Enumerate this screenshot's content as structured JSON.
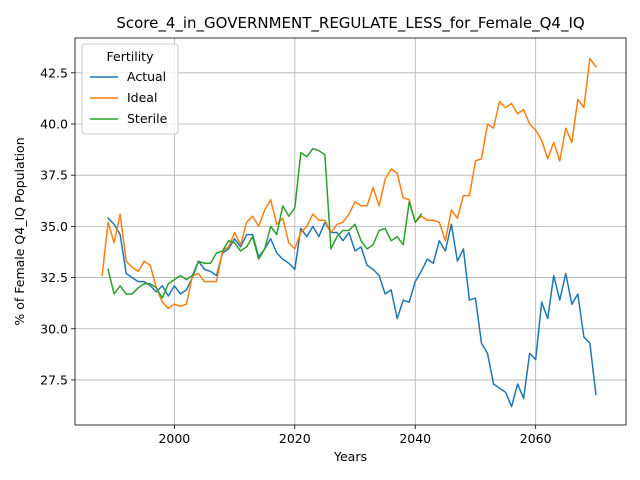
{
  "chart_data": {
    "type": "line",
    "title": "Score_4_in_GOVERNMENT_REGULATE_LESS_for_Female_Q4_IQ",
    "xlabel": "Years",
    "ylabel": "% of Female Q4_IQ Population",
    "xlim": [
      1983.5,
      2075
    ],
    "ylim": [
      25.3,
      44.2
    ],
    "x_ticks": [
      2000,
      2020,
      2040,
      2060
    ],
    "y_ticks": [
      27.5,
      30.0,
      32.5,
      35.0,
      37.5,
      40.0,
      42.5
    ],
    "y_tick_labels": [
      "27.5",
      "30.0",
      "32.5",
      "35.0",
      "37.5",
      "40.0",
      "42.5"
    ],
    "grid": true,
    "legend": {
      "title": "Fertility",
      "placement": "top-left"
    },
    "series": [
      {
        "name": "Actual",
        "color": "#1f77b4",
        "x": [
          1989,
          1990,
          1991,
          1992,
          1993,
          1994,
          1995,
          1996,
          1997,
          1998,
          1999,
          2000,
          2001,
          2002,
          2003,
          2004,
          2005,
          2006,
          2007,
          2008,
          2009,
          2010,
          2011,
          2012,
          2013,
          2014,
          2015,
          2016,
          2017,
          2018,
          2019,
          2020,
          2021,
          2022,
          2023,
          2024,
          2025,
          2026,
          2027,
          2028,
          2029,
          2030,
          2031,
          2032,
          2033,
          2034,
          2035,
          2036,
          2037,
          2038,
          2039,
          2040,
          2041,
          2042,
          2043,
          2044,
          2045,
          2046,
          2047,
          2048,
          2049,
          2050,
          2051,
          2052,
          2053,
          2054,
          2055,
          2056,
          2057,
          2058,
          2059,
          2060,
          2061,
          2062,
          2063,
          2064,
          2065,
          2066,
          2067,
          2068,
          2069,
          2070
        ],
        "values": [
          35.4,
          35.1,
          34.6,
          32.7,
          32.5,
          32.3,
          32.3,
          32.1,
          31.8,
          32.1,
          31.6,
          32.1,
          31.7,
          31.9,
          32.5,
          33.3,
          32.9,
          32.8,
          32.6,
          33.7,
          33.9,
          34.4,
          34.0,
          34.6,
          34.6,
          33.5,
          33.9,
          34.4,
          33.7,
          33.4,
          33.2,
          32.9,
          34.9,
          34.5,
          35.0,
          34.5,
          35.2,
          34.7,
          34.7,
          34.3,
          34.7,
          33.8,
          34.0,
          33.1,
          32.9,
          32.6,
          31.7,
          31.9,
          30.5,
          31.4,
          31.3,
          32.3,
          32.8,
          33.4,
          33.2,
          34.3,
          33.8,
          35.1,
          33.3,
          33.9,
          31.4,
          31.5,
          29.3,
          28.8,
          27.3,
          27.1,
          26.9,
          26.2,
          27.3,
          26.6,
          28.8,
          28.5,
          31.3,
          30.5,
          32.6,
          31.4,
          32.7,
          31.2,
          31.7,
          29.6,
          29.3,
          26.8
        ]
      },
      {
        "name": "Ideal",
        "color": "#ff7f0e",
        "x": [
          1988,
          1989,
          1990,
          1991,
          1992,
          1993,
          1994,
          1995,
          1996,
          1997,
          1998,
          1999,
          2000,
          2001,
          2002,
          2003,
          2004,
          2005,
          2006,
          2007,
          2008,
          2009,
          2010,
          2011,
          2012,
          2013,
          2014,
          2015,
          2016,
          2017,
          2018,
          2019,
          2020,
          2021,
          2022,
          2023,
          2024,
          2025,
          2026,
          2027,
          2028,
          2029,
          2030,
          2031,
          2032,
          2033,
          2034,
          2035,
          2036,
          2037,
          2038,
          2039,
          2040,
          2041,
          2042,
          2043,
          2044,
          2045,
          2046,
          2047,
          2048,
          2049,
          2050,
          2051,
          2052,
          2053,
          2054,
          2055,
          2056,
          2057,
          2058,
          2059,
          2060,
          2061,
          2062,
          2063,
          2064,
          2065,
          2066,
          2067,
          2068,
          2069,
          2070
        ],
        "values": [
          32.6,
          35.2,
          34.2,
          35.6,
          33.3,
          33.0,
          32.8,
          33.3,
          33.1,
          32.0,
          31.3,
          31.0,
          31.2,
          31.1,
          31.2,
          32.6,
          32.7,
          32.3,
          32.3,
          32.3,
          33.8,
          34.0,
          34.7,
          34.1,
          35.2,
          35.5,
          35.0,
          35.8,
          36.3,
          35.1,
          35.4,
          34.2,
          33.9,
          34.7,
          35.0,
          35.6,
          35.3,
          35.3,
          34.7,
          35.1,
          35.2,
          35.6,
          36.2,
          36.0,
          36.0,
          36.9,
          36.0,
          37.3,
          37.8,
          37.6,
          36.4,
          36.3,
          35.2,
          35.5,
          35.3,
          35.3,
          35.2,
          34.3,
          35.8,
          35.4,
          36.5,
          36.5,
          38.2,
          38.3,
          40.0,
          39.8,
          41.1,
          40.8,
          41.0,
          40.5,
          40.7,
          40.0,
          39.7,
          39.2,
          38.3,
          39.1,
          38.2,
          39.8,
          39.1,
          41.2,
          40.8,
          43.2,
          42.8
        ]
      },
      {
        "name": "Sterile",
        "color": "#2ca02c",
        "x": [
          1989,
          1990,
          1991,
          1992,
          1993,
          1994,
          1995,
          1996,
          1997,
          1998,
          1999,
          2000,
          2001,
          2002,
          2003,
          2004,
          2005,
          2006,
          2007,
          2008,
          2009,
          2010,
          2011,
          2012,
          2013,
          2014,
          2015,
          2016,
          2017,
          2018,
          2019,
          2020,
          2021,
          2022,
          2023,
          2024,
          2025,
          2026,
          2027,
          2028,
          2029,
          2030,
          2031,
          2032,
          2033,
          2034,
          2035,
          2036,
          2037,
          2038,
          2039,
          2040,
          2041
        ],
        "values": [
          32.9,
          31.7,
          32.1,
          31.7,
          31.7,
          32.0,
          32.2,
          32.2,
          32.0,
          31.5,
          32.2,
          32.4,
          32.6,
          32.4,
          32.6,
          33.3,
          33.2,
          33.2,
          33.7,
          33.8,
          34.3,
          34.2,
          33.8,
          34.0,
          34.5,
          33.4,
          33.9,
          35.0,
          34.6,
          36.0,
          35.5,
          35.9,
          38.6,
          38.4,
          38.8,
          38.7,
          38.5,
          33.9,
          34.5,
          34.8,
          34.8,
          35.1,
          34.3,
          33.9,
          34.1,
          34.8,
          34.9,
          34.3,
          34.5,
          34.1,
          36.2,
          35.2,
          35.6
        ]
      }
    ]
  }
}
